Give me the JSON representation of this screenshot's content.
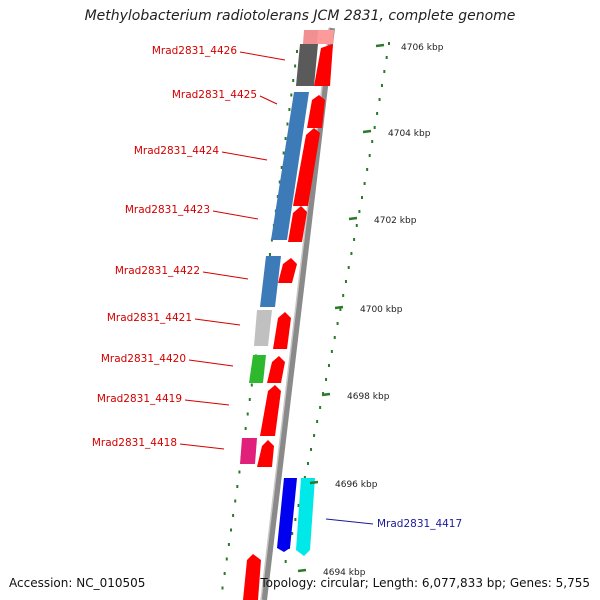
{
  "title": "Methylobacterium radiotolerans JCM 2831, complete genome",
  "footer": {
    "accession": "Accession: NC_010505",
    "summary": "Topology: circular; Length: 6,077,833 bp; Genes: 5,755"
  },
  "colors": {
    "forward_cds": "#ff0000",
    "reverse_label": "#1a1a9a",
    "forward_label": "#d40000",
    "tick": "#2a7a2a",
    "backbone": "#8a8a8a"
  },
  "scale_ticks": [
    "4706 kbp",
    "4704 kbp",
    "4702 kbp",
    "4700 kbp",
    "4698 kbp",
    "4696 kbp",
    "4694 kbp"
  ],
  "gene_labels": [
    {
      "name": "Mrad2831_4426",
      "strand": "forward"
    },
    {
      "name": "Mrad2831_4425",
      "strand": "forward"
    },
    {
      "name": "Mrad2831_4424",
      "strand": "forward"
    },
    {
      "name": "Mrad2831_4423",
      "strand": "forward"
    },
    {
      "name": "Mrad2831_4422",
      "strand": "forward"
    },
    {
      "name": "Mrad2831_4421",
      "strand": "forward"
    },
    {
      "name": "Mrad2831_4420",
      "strand": "forward"
    },
    {
      "name": "Mrad2831_4419",
      "strand": "forward"
    },
    {
      "name": "Mrad2831_4418",
      "strand": "forward"
    },
    {
      "name": "Mrad2831_4417",
      "strand": "reverse"
    }
  ]
}
